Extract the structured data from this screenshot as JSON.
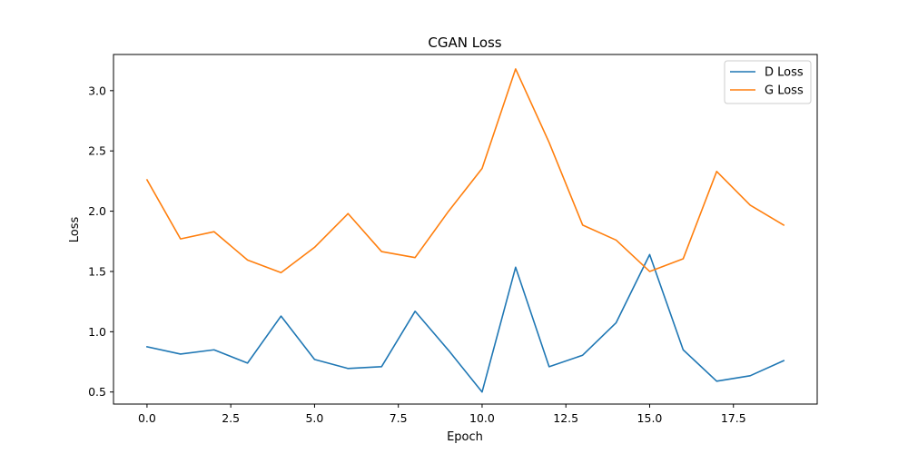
{
  "chart_data": {
    "type": "line",
    "title": "CGAN Loss",
    "xlabel": "Epoch",
    "ylabel": "Loss",
    "xlim": [
      -1,
      20
    ],
    "ylim": [
      0.4,
      3.3
    ],
    "xticks": [
      "0.0",
      "2.5",
      "5.0",
      "7.5",
      "10.0",
      "12.5",
      "15.0",
      "17.5"
    ],
    "xtick_values": [
      0,
      2.5,
      5,
      7.5,
      10,
      12.5,
      15,
      17.5
    ],
    "yticks": [
      "0.5",
      "1.0",
      "1.5",
      "2.0",
      "2.5",
      "3.0"
    ],
    "ytick_values": [
      0.5,
      1.0,
      1.5,
      2.0,
      2.5,
      3.0
    ],
    "grid": false,
    "legend_position": "top-right",
    "x": [
      0,
      1,
      2,
      3,
      4,
      5,
      6,
      7,
      8,
      9,
      10,
      11,
      12,
      13,
      14,
      15,
      16,
      17,
      18,
      19
    ],
    "series": [
      {
        "name": "D Loss",
        "color": "#1f77b4",
        "values": [
          0.875,
          0.815,
          0.85,
          0.74,
          1.13,
          0.77,
          0.695,
          0.71,
          1.17,
          0.845,
          0.5,
          1.535,
          0.71,
          0.805,
          1.075,
          1.64,
          0.85,
          0.59,
          0.635,
          0.76
        ]
      },
      {
        "name": "G Loss",
        "color": "#ff7f0e",
        "values": [
          2.26,
          1.77,
          1.83,
          1.595,
          1.49,
          1.7,
          1.98,
          1.665,
          1.615,
          2.0,
          2.355,
          3.18,
          2.57,
          1.885,
          1.76,
          1.5,
          1.605,
          2.33,
          2.05,
          1.885
        ]
      }
    ]
  }
}
